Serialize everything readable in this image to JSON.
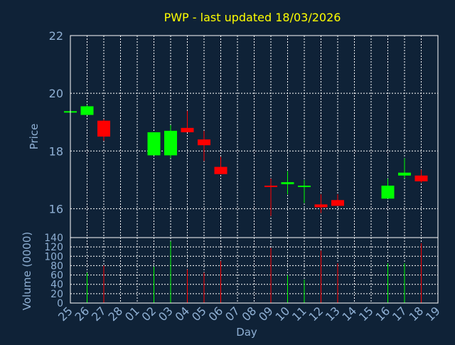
{
  "chart_data": {
    "type": "candlestick",
    "title": "PWP - last updated 18/03/2026",
    "xlabel": "Day",
    "colors": {
      "background": "#0f2237",
      "up": "#00ff00",
      "down": "#ff0000",
      "grid": "#ffffff",
      "text": "#8fb0d4",
      "title": "#ffff00"
    },
    "x_ticks": [
      "25",
      "26",
      "27",
      "28",
      "01",
      "02",
      "03",
      "04",
      "05",
      "06",
      "07",
      "08",
      "09",
      "10",
      "11",
      "12",
      "13",
      "14",
      "15",
      "16",
      "17",
      "18",
      "19"
    ],
    "price_panel": {
      "ylabel": "Price",
      "ylim": [
        15,
        22
      ],
      "yticks": [
        "16",
        "18",
        "20",
        "22"
      ],
      "grid": true
    },
    "volume_panel": {
      "ylabel": "Volume (0000)",
      "ylim": [
        0,
        140
      ],
      "yticks": [
        "0",
        "20",
        "40",
        "60",
        "80",
        "100",
        "120",
        "140"
      ],
      "grid": true
    },
    "candles": [
      {
        "day": "25",
        "open": 19.38,
        "high": 19.38,
        "low": 19.38,
        "close": 19.38,
        "volume": 0
      },
      {
        "day": "26",
        "open": 19.25,
        "high": 19.6,
        "low": 19.25,
        "close": 19.55,
        "volume": 65
      },
      {
        "day": "27",
        "open": 19.05,
        "high": 19.1,
        "low": 18.35,
        "close": 18.5,
        "volume": 80
      },
      {
        "day": "02",
        "open": 17.85,
        "high": 18.65,
        "low": 17.85,
        "close": 18.65,
        "volume": 78
      },
      {
        "day": "03",
        "open": 17.85,
        "high": 18.9,
        "low": 17.75,
        "close": 18.7,
        "volume": 132
      },
      {
        "day": "04",
        "open": 18.8,
        "high": 19.4,
        "low": 18.65,
        "close": 18.65,
        "volume": 72
      },
      {
        "day": "05",
        "open": 18.4,
        "high": 18.7,
        "low": 17.65,
        "close": 18.2,
        "volume": 65
      },
      {
        "day": "06",
        "open": 17.45,
        "high": 17.8,
        "low": 17.2,
        "close": 17.2,
        "volume": 90
      },
      {
        "day": "09",
        "open": 16.8,
        "high": 17.05,
        "low": 15.75,
        "close": 16.75,
        "volume": 118
      },
      {
        "day": "10",
        "open": 16.85,
        "high": 17.3,
        "low": 16.5,
        "close": 16.92,
        "volume": 60
      },
      {
        "day": "11",
        "open": 16.77,
        "high": 17.0,
        "low": 16.2,
        "close": 16.8,
        "volume": 50
      },
      {
        "day": "12",
        "open": 16.15,
        "high": 16.5,
        "low": 15.85,
        "close": 16.05,
        "volume": 112
      },
      {
        "day": "13",
        "open": 16.3,
        "high": 16.5,
        "low": 16.1,
        "close": 16.1,
        "volume": 85
      },
      {
        "day": "16",
        "open": 16.35,
        "high": 17.05,
        "low": 16.35,
        "close": 16.8,
        "volume": 85
      },
      {
        "day": "17",
        "open": 17.15,
        "high": 17.75,
        "low": 17.05,
        "close": 17.25,
        "volume": 85
      },
      {
        "day": "18",
        "open": 17.15,
        "high": 17.35,
        "low": 16.9,
        "close": 16.95,
        "volume": 128
      }
    ]
  }
}
